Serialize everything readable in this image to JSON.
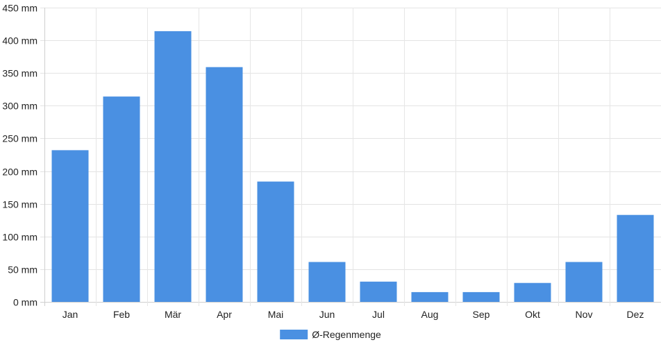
{
  "chart_data": {
    "type": "bar",
    "categories": [
      "Jan",
      "Feb",
      "Mär",
      "Apr",
      "Mai",
      "Jun",
      "Jul",
      "Aug",
      "Sep",
      "Okt",
      "Nov",
      "Dez"
    ],
    "series": [
      {
        "name": "Ø-Regenmenge",
        "values": [
          232,
          314,
          414,
          359,
          184,
          61,
          31,
          15,
          15,
          29,
          61,
          133
        ],
        "color": "#4a90e2"
      }
    ],
    "ylim": [
      0,
      450
    ],
    "yticks": [
      0,
      50,
      100,
      150,
      200,
      250,
      300,
      350,
      400,
      450
    ],
    "ytick_suffix": " mm",
    "grid": true,
    "legend_position": "bottom-center",
    "title": "",
    "xlabel": "",
    "ylabel": ""
  }
}
